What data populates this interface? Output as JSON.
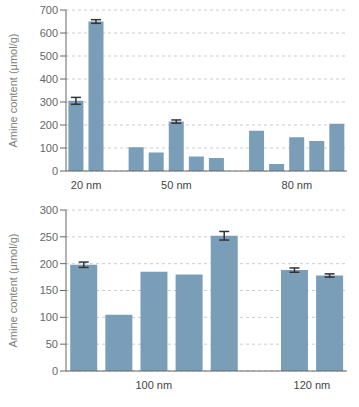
{
  "chart_data": [
    {
      "type": "bar",
      "ylabel": "Amine content (μmol/g)",
      "groups": [
        {
          "label": "20 nm",
          "values": [
            305,
            650
          ],
          "errors": [
            15,
            8
          ]
        },
        {
          "label": "50 nm",
          "values": [
            103,
            80,
            215,
            63,
            57
          ],
          "errors": [
            0,
            0,
            7,
            0,
            0
          ]
        },
        {
          "label": "80 nm",
          "values": [
            175,
            30,
            147,
            130,
            205
          ],
          "errors": [
            0,
            0,
            0,
            0,
            0
          ]
        }
      ],
      "ylim": [
        0,
        700
      ],
      "yticks": [
        0,
        100,
        200,
        300,
        400,
        500,
        600,
        700
      ],
      "grid": true,
      "color": "#7a9db8"
    },
    {
      "type": "bar",
      "ylabel": "Amine content (μmol/g)",
      "groups": [
        {
          "label": "100 nm",
          "values": [
            198,
            105,
            185,
            180,
            252
          ],
          "errors": [
            5,
            0,
            0,
            0,
            8
          ]
        },
        {
          "label": "120 nm",
          "values": [
            188,
            178
          ],
          "errors": [
            4,
            3
          ]
        }
      ],
      "ylim": [
        0,
        300
      ],
      "yticks": [
        0,
        50,
        100,
        150,
        200,
        250,
        300
      ],
      "grid": true,
      "color": "#7a9db8"
    }
  ]
}
